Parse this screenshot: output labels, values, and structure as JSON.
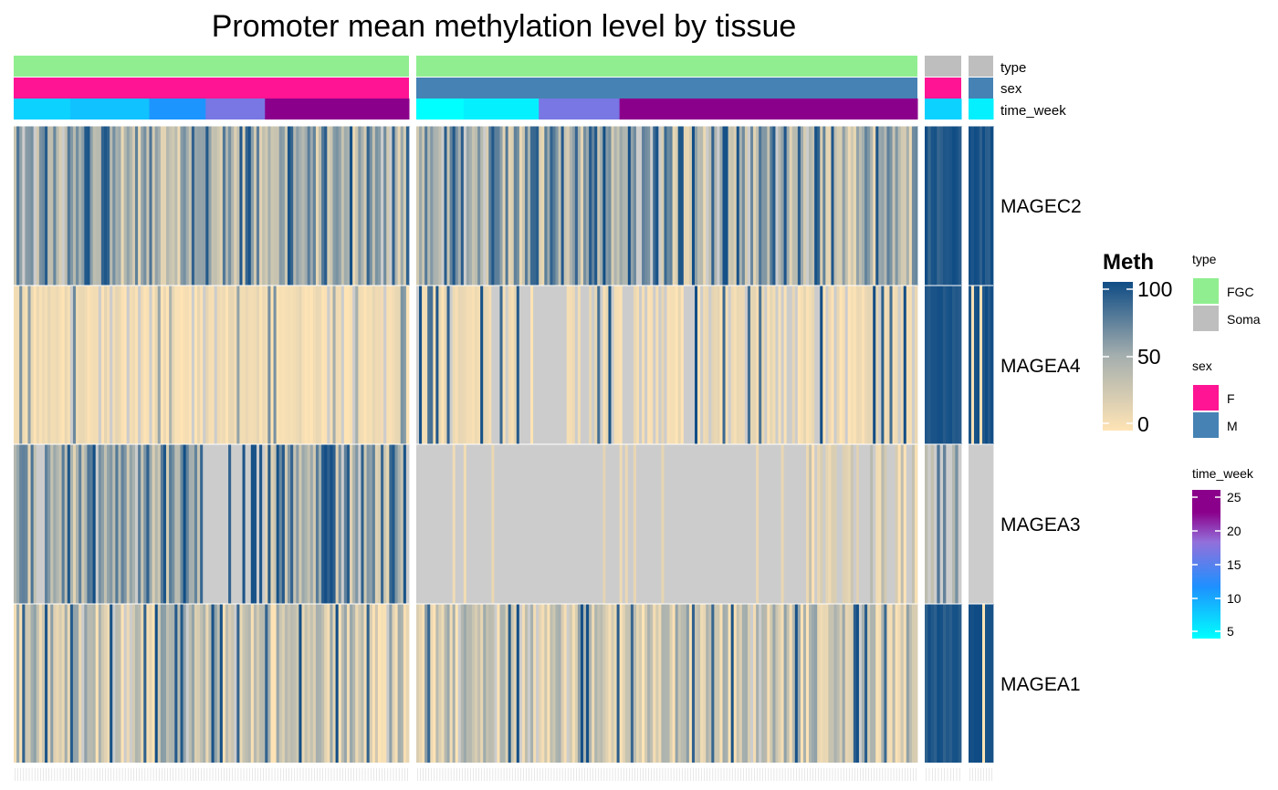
{
  "chart_data": {
    "type": "heatmap",
    "title": "Promoter mean methylation level by tissue",
    "rows": [
      "MAGEC2",
      "MAGEA4",
      "MAGEA3",
      "MAGEA1"
    ],
    "column_groups": [
      {
        "type": "FGC",
        "sex": "F",
        "n_columns": 140,
        "time_week_segments": [
          {
            "time_week": 7,
            "n": 20
          },
          {
            "time_week": 8,
            "n": 28
          },
          {
            "time_week": 11,
            "n": 20
          },
          {
            "time_week": 17,
            "n": 21
          },
          {
            "time_week": 26,
            "n": 51
          }
        ]
      },
      {
        "type": "FGC",
        "sex": "M",
        "n_columns": 180,
        "time_week_segments": [
          {
            "time_week": 4,
            "n": 17
          },
          {
            "time_week": 5,
            "n": 27
          },
          {
            "time_week": 17,
            "n": 29
          },
          {
            "time_week": 26,
            "n": 107
          }
        ]
      },
      {
        "type": "Soma",
        "sex": "F",
        "n_columns": 12,
        "time_week_segments": [
          {
            "time_week": 7,
            "n": 12
          }
        ]
      },
      {
        "type": "Soma",
        "sex": "M",
        "n_columns": 9,
        "time_week_segments": [
          {
            "time_week": 5,
            "n": 9
          }
        ]
      }
    ],
    "value_patterns": {
      "MAGEC2": [
        "mixed 0-100, mostly 30-70",
        "mixed 0-100, many high",
        "high (~85-100)",
        "high/mixed"
      ],
      "MAGEA4": [
        "low (~0-20), some mid/NA",
        "low with frequent NA and high streaks",
        "high (~95-100)",
        "high with low streaks"
      ],
      "MAGEA3": [
        "mixed, right part mostly NA",
        "mostly NA with low streaks",
        "mostly NA/mid",
        "NA"
      ],
      "MAGEA1": [
        "low-mid with high streaks",
        "low-mid with high streaks",
        "high (~90-100)",
        "high (~100)"
      ]
    },
    "color_scale": {
      "name": "Meth",
      "min": 0,
      "mid": 50,
      "max": 100,
      "ticks": [
        0,
        50,
        100
      ],
      "low_color": "#FFE4B5",
      "mid_color": "#A5AFAE",
      "high_color": "#0F4C85",
      "na_color": "#CCCCCC"
    },
    "annotations": [
      {
        "name": "type",
        "legend": [
          {
            "label": "FGC",
            "color": "#90EE90"
          },
          {
            "label": "Soma",
            "color": "#BEBEBE"
          }
        ]
      },
      {
        "name": "sex",
        "legend": [
          {
            "label": "F",
            "color": "#FF1493"
          },
          {
            "label": "M",
            "color": "#4682B4"
          }
        ]
      },
      {
        "name": "time_week",
        "ticks": [
          5,
          10,
          15,
          20,
          25
        ],
        "range": [
          4,
          26
        ],
        "gradient": [
          "#00FFFF",
          "#1E90FF",
          "#9370DB",
          "#8B008B"
        ]
      }
    ]
  }
}
